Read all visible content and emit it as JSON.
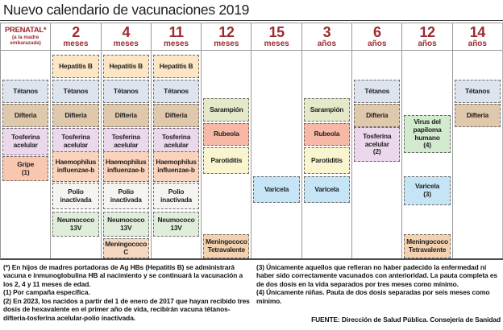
{
  "title": "Nuevo calendario de vacunaciones 2019",
  "colors": {
    "header_red": "#9c2b30",
    "tetanos": "#dde4ed",
    "difteria": "#e0c8ac",
    "tosferina": "#ebd8ec",
    "tosferina2": "#ebd8ec",
    "gripe": "#f9c7af",
    "hepatitis": "#fce6c4",
    "haemophilus": "#f9d3bb",
    "polio": "#f6f4f1",
    "neumococo": "#e1eddb",
    "meningc": "#f4d8bf",
    "sarampion": "#e5e9c9",
    "rubeola": "#f7b9a6",
    "parotiditis": "#f9f6cf",
    "varicela": "#c5e5f7",
    "varicela3": "#c5e5f7",
    "vph": "#d2ebce",
    "meningtetra": "#f4d2b0"
  },
  "chart_data": {
    "type": "table",
    "title": "Nuevo calendario de vacunaciones 2019",
    "age_columns": [
      "PRENATAL* (a la madre embarazada)",
      "2 meses",
      "4 meses",
      "11 meses",
      "12 meses",
      "15 meses",
      "3 años",
      "6 años",
      "12 años",
      "14 años"
    ],
    "columns": [
      {
        "id": "prenatal",
        "header_main": "PRENATAL*",
        "header_sub": "(a la madre embarazada)",
        "vaccines": [
          {
            "label": "Tétanos",
            "row": "tetanos",
            "color": "tetanos"
          },
          {
            "label": "Difteria",
            "row": "difteria",
            "color": "difteria"
          },
          {
            "label": "Tosferina\nacelular",
            "row": "tosferina",
            "color": "tosferina"
          },
          {
            "label": "Gripe\n(1)",
            "row": "gripe",
            "color": "gripe"
          }
        ]
      },
      {
        "id": "2-meses",
        "header_num": "2",
        "header_unit": "meses",
        "vaccines": [
          {
            "label": "Hepatitis B",
            "row": "hepatitis",
            "color": "hepatitis"
          },
          {
            "label": "Tétanos",
            "row": "tetanos",
            "color": "tetanos"
          },
          {
            "label": "Difteria",
            "row": "difteria",
            "color": "difteria"
          },
          {
            "label": "Tosferina\nacelular",
            "row": "tosferina",
            "color": "tosferina"
          },
          {
            "label": "Haemophilus\ninfluenzae-b",
            "row": "haemophilus",
            "color": "haemophilus"
          },
          {
            "label": "Polio\ninactivada",
            "row": "polio",
            "color": "polio"
          },
          {
            "label": "Neumococo\n13V",
            "row": "neumococo",
            "color": "neumococo"
          }
        ]
      },
      {
        "id": "4-meses",
        "header_num": "4",
        "header_unit": "meses",
        "vaccines": [
          {
            "label": "Hepatitis B",
            "row": "hepatitis",
            "color": "hepatitis"
          },
          {
            "label": "Tétanos",
            "row": "tetanos",
            "color": "tetanos"
          },
          {
            "label": "Difteria",
            "row": "difteria",
            "color": "difteria"
          },
          {
            "label": "Tosferina\nacelular",
            "row": "tosferina",
            "color": "tosferina"
          },
          {
            "label": "Haemophilus\ninfluenzae-b",
            "row": "haemophilus",
            "color": "haemophilus"
          },
          {
            "label": "Polio\ninactivada",
            "row": "polio",
            "color": "polio"
          },
          {
            "label": "Neumococo\n13V",
            "row": "neumococo",
            "color": "neumococo"
          },
          {
            "label": "Meningococo\nC",
            "row": "meningc",
            "color": "meningc"
          }
        ]
      },
      {
        "id": "11-meses",
        "header_num": "11",
        "header_unit": "meses",
        "vaccines": [
          {
            "label": "Hepatitis B",
            "row": "hepatitis",
            "color": "hepatitis"
          },
          {
            "label": "Tétanos",
            "row": "tetanos",
            "color": "tetanos"
          },
          {
            "label": "Difteria",
            "row": "difteria",
            "color": "difteria"
          },
          {
            "label": "Tosferina\nacelular",
            "row": "tosferina",
            "color": "tosferina"
          },
          {
            "label": "Haemophilus\ninfluenzae-b",
            "row": "haemophilus",
            "color": "haemophilus"
          },
          {
            "label": "Polio\ninactivada",
            "row": "polio",
            "color": "polio"
          },
          {
            "label": "Neumococo\n13V",
            "row": "neumococo",
            "color": "neumococo"
          }
        ]
      },
      {
        "id": "12-meses",
        "header_num": "12",
        "header_unit": "meses",
        "vaccines": [
          {
            "label": "Sarampión",
            "row": "sarampion",
            "color": "sarampion"
          },
          {
            "label": "Rubeola",
            "row": "rubeola",
            "color": "rubeola"
          },
          {
            "label": "Parotiditis",
            "row": "parotiditis",
            "color": "parotiditis"
          },
          {
            "label": "Meningococo\nTetravalente",
            "row": "meningtetra",
            "color": "meningtetra"
          }
        ]
      },
      {
        "id": "15-meses",
        "header_num": "15",
        "header_unit": "meses",
        "vaccines": [
          {
            "label": "Varicela",
            "row": "varicela",
            "color": "varicela"
          }
        ]
      },
      {
        "id": "3-anos",
        "header_num": "3",
        "header_unit": "años",
        "vaccines": [
          {
            "label": "Sarampión",
            "row": "sarampion",
            "color": "sarampion"
          },
          {
            "label": "Rubeola",
            "row": "rubeola",
            "color": "rubeola"
          },
          {
            "label": "Parotiditis",
            "row": "parotiditis",
            "color": "parotiditis"
          },
          {
            "label": "Varicela",
            "row": "varicela",
            "color": "varicela"
          }
        ]
      },
      {
        "id": "6-anos",
        "header_num": "6",
        "header_unit": "años",
        "vaccines": [
          {
            "label": "Tétanos",
            "row": "tetanos",
            "color": "tetanos"
          },
          {
            "label": "Difteria",
            "row": "difteria",
            "color": "difteria"
          },
          {
            "label": "Tosferina\nacelular\n(2)",
            "row": "tosferina2",
            "color": "tosferina2"
          }
        ]
      },
      {
        "id": "12-anos",
        "header_num": "12",
        "header_unit": "años",
        "vaccines": [
          {
            "label": "Virus del\npapiloma\nhumano\n(4)",
            "row": "vph",
            "color": "vph"
          },
          {
            "label": "Varicela\n(3)",
            "row": "varicela3",
            "color": "varicela3"
          },
          {
            "label": "Meningococo\nTetravalente",
            "row": "meningtetra",
            "color": "meningtetra"
          }
        ]
      },
      {
        "id": "14-anos",
        "header_num": "14",
        "header_unit": "años",
        "vaccines": [
          {
            "label": "Tétanos",
            "row": "tetanos",
            "color": "tetanos"
          },
          {
            "label": "Difteria",
            "row": "difteria",
            "color": "difteria"
          }
        ]
      }
    ]
  },
  "notes_left": [
    "(*) En hijos de madres portadoras de Ag HBs (Hepatitis B) se administrará vacuna e inmunoglobulina HB al nacimiento y se continuará la vacunación a los 2, 4 y 11 meses de edad.",
    "(1) Por campaña específica.",
    "(2) En 2023, los nacidos a partir del 1 de enero de 2017 que hayan recibido tres dosis de hexavalente en el primer año de vida, recibirán vacuna tétanos-difteria-tosferina acelular-polio inactivada."
  ],
  "notes_right": [
    "(3) Únicamente aquellos que refieran no haber padecido la enfermedad ni haber sido correctamente vacunados con anterioridad. La pauta completa es de dos dosis en la vida separados por tres meses como mínimo.",
    "(4) Únicamente niñas. Pauta de dos dosis separadas por seis meses como mínimo."
  ],
  "source": "FUENTE: Dirección de Salud Pública. Consejería de Sanidad"
}
